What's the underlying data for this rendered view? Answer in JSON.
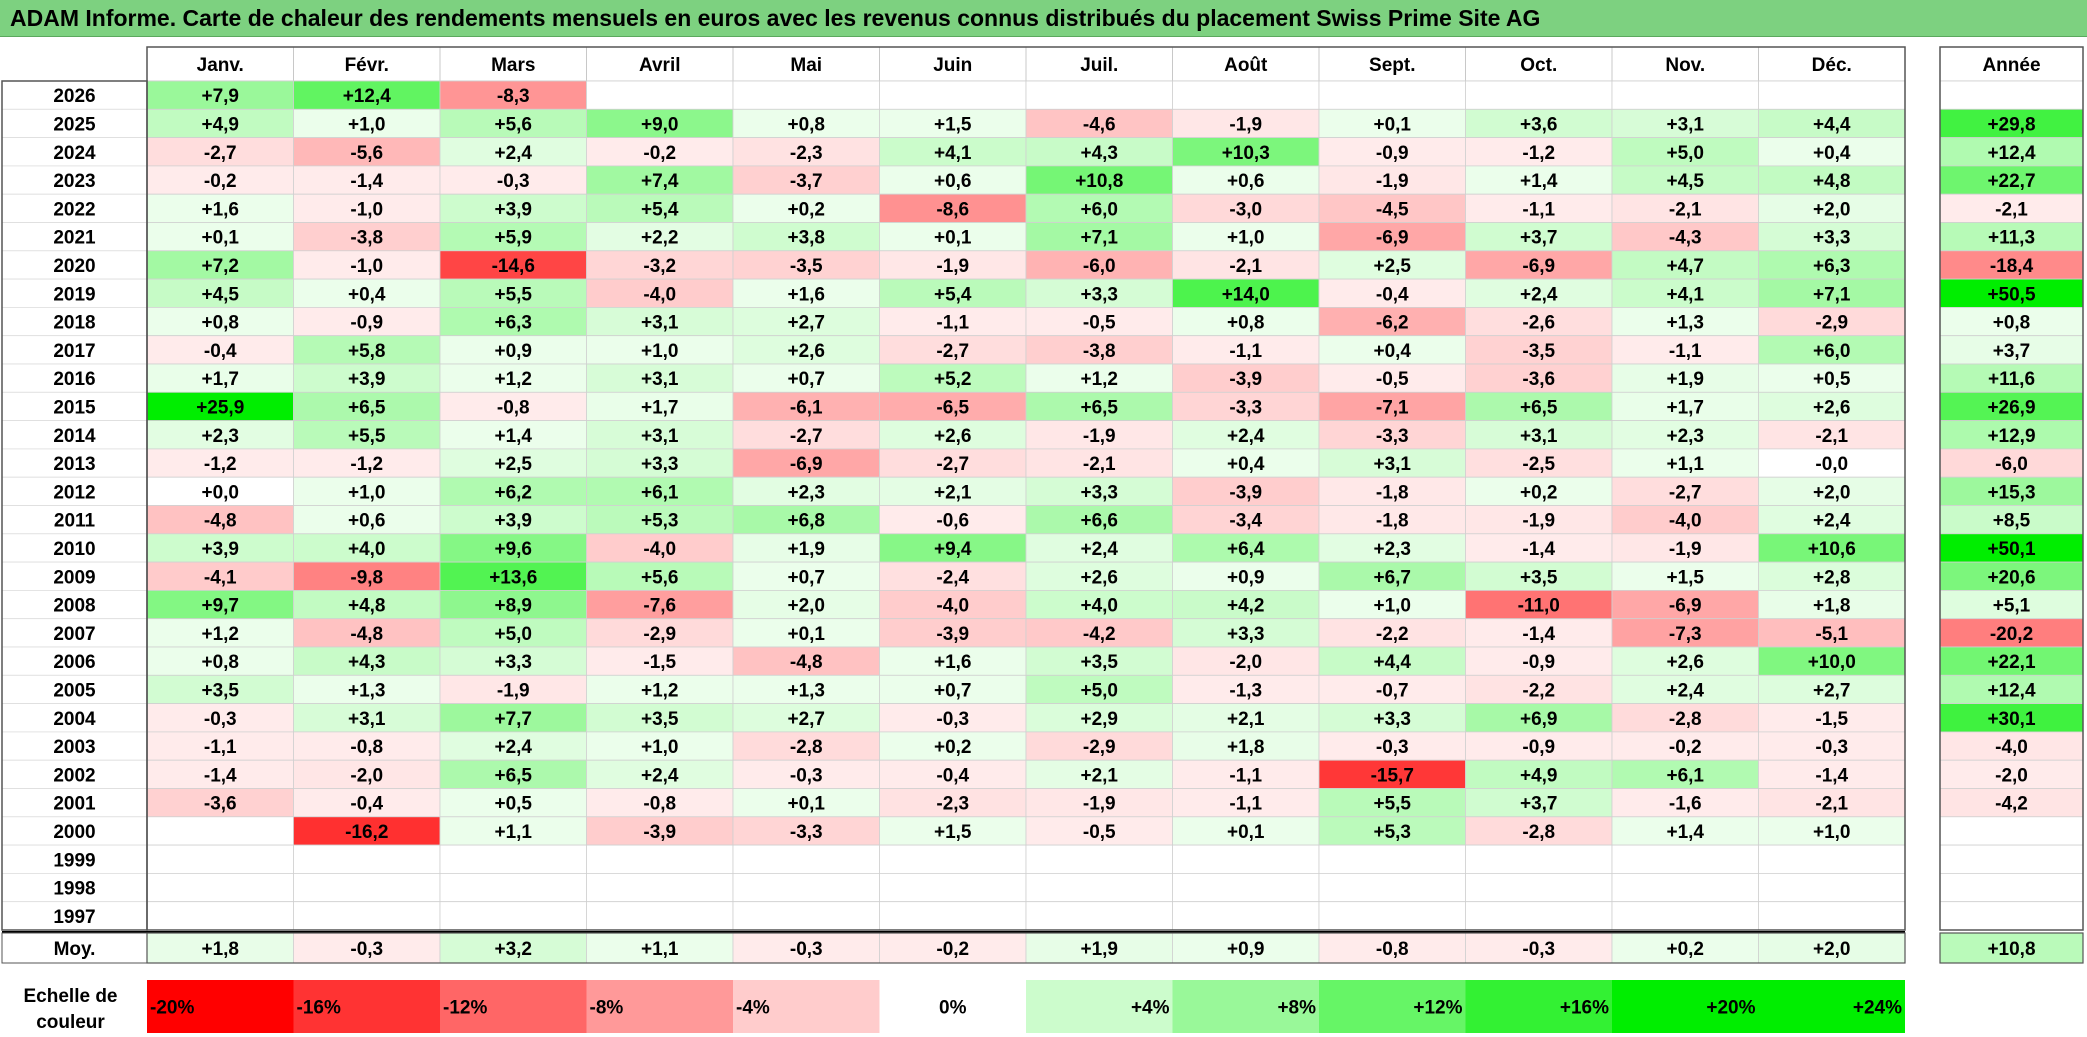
{
  "title": "ADAM Informe. Carte de chaleur des rendements mensuels en euros avec les revenus connus distribués du placement Swiss Prime Site AG",
  "chart_data": {
    "type": "heatmap",
    "months": [
      "Janv.",
      "Févr.",
      "Mars",
      "Avril",
      "Mai",
      "Juin",
      "Juil.",
      "Août",
      "Sept.",
      "Oct.",
      "Nov.",
      "Déc."
    ],
    "year_header": "Année",
    "rows": [
      {
        "year": "2026",
        "values": [
          "+7,9",
          "+12,4",
          "-8,3",
          "",
          "",
          "",
          "",
          "",
          "",
          "",
          "",
          ""
        ],
        "annual": ""
      },
      {
        "year": "2025",
        "values": [
          "+4,9",
          "+1,0",
          "+5,6",
          "+9,0",
          "+0,8",
          "+1,5",
          "-4,6",
          "-1,9",
          "+0,1",
          "+3,6",
          "+3,1",
          "+4,4"
        ],
        "annual": "+29,8"
      },
      {
        "year": "2024",
        "values": [
          "-2,7",
          "-5,6",
          "+2,4",
          "-0,2",
          "-2,3",
          "+4,1",
          "+4,3",
          "+10,3",
          "-0,9",
          "-1,2",
          "+5,0",
          "+0,4"
        ],
        "annual": "+12,4"
      },
      {
        "year": "2023",
        "values": [
          "-0,2",
          "-1,4",
          "-0,3",
          "+7,4",
          "-3,7",
          "+0,6",
          "+10,8",
          "+0,6",
          "-1,9",
          "+1,4",
          "+4,5",
          "+4,8"
        ],
        "annual": "+22,7"
      },
      {
        "year": "2022",
        "values": [
          "+1,6",
          "-1,0",
          "+3,9",
          "+5,4",
          "+0,2",
          "-8,6",
          "+6,0",
          "-3,0",
          "-4,5",
          "-1,1",
          "-2,1",
          "+2,0"
        ],
        "annual": "-2,1"
      },
      {
        "year": "2021",
        "values": [
          "+0,1",
          "-3,8",
          "+5,9",
          "+2,2",
          "+3,8",
          "+0,1",
          "+7,1",
          "+1,0",
          "-6,9",
          "+3,7",
          "-4,3",
          "+3,3"
        ],
        "annual": "+11,3"
      },
      {
        "year": "2020",
        "values": [
          "+7,2",
          "-1,0",
          "-14,6",
          "-3,2",
          "-3,5",
          "-1,9",
          "-6,0",
          "-2,1",
          "+2,5",
          "-6,9",
          "+4,7",
          "+6,3"
        ],
        "annual": "-18,4"
      },
      {
        "year": "2019",
        "values": [
          "+4,5",
          "+0,4",
          "+5,5",
          "-4,0",
          "+1,6",
          "+5,4",
          "+3,3",
          "+14,0",
          "-0,4",
          "+2,4",
          "+4,1",
          "+7,1"
        ],
        "annual": "+50,5"
      },
      {
        "year": "2018",
        "values": [
          "+0,8",
          "-0,9",
          "+6,3",
          "+3,1",
          "+2,7",
          "-1,1",
          "-0,5",
          "+0,8",
          "-6,2",
          "-2,6",
          "+1,3",
          "-2,9"
        ],
        "annual": "+0,8"
      },
      {
        "year": "2017",
        "values": [
          "-0,4",
          "+5,8",
          "+0,9",
          "+1,0",
          "+2,6",
          "-2,7",
          "-3,8",
          "-1,1",
          "+0,4",
          "-3,5",
          "-1,1",
          "+6,0"
        ],
        "annual": "+3,7"
      },
      {
        "year": "2016",
        "values": [
          "+1,7",
          "+3,9",
          "+1,2",
          "+3,1",
          "+0,7",
          "+5,2",
          "+1,2",
          "-3,9",
          "-0,5",
          "-3,6",
          "+1,9",
          "+0,5"
        ],
        "annual": "+11,6"
      },
      {
        "year": "2015",
        "values": [
          "+25,9",
          "+6,5",
          "-0,8",
          "+1,7",
          "-6,1",
          "-6,5",
          "+6,5",
          "-3,3",
          "-7,1",
          "+6,5",
          "+1,7",
          "+2,6"
        ],
        "annual": "+26,9"
      },
      {
        "year": "2014",
        "values": [
          "+2,3",
          "+5,5",
          "+1,4",
          "+3,1",
          "-2,7",
          "+2,6",
          "-1,9",
          "+2,4",
          "-3,3",
          "+3,1",
          "+2,3",
          "-2,1"
        ],
        "annual": "+12,9"
      },
      {
        "year": "2013",
        "values": [
          "-1,2",
          "-1,2",
          "+2,5",
          "+3,3",
          "-6,9",
          "-2,7",
          "-2,1",
          "+0,4",
          "+3,1",
          "-2,5",
          "+1,1",
          "-0,0"
        ],
        "annual": "-6,0"
      },
      {
        "year": "2012",
        "values": [
          "+0,0",
          "+1,0",
          "+6,2",
          "+6,1",
          "+2,3",
          "+2,1",
          "+3,3",
          "-3,9",
          "-1,8",
          "+0,2",
          "-2,7",
          "+2,0"
        ],
        "annual": "+15,3"
      },
      {
        "year": "2011",
        "values": [
          "-4,8",
          "+0,6",
          "+3,9",
          "+5,3",
          "+6,8",
          "-0,6",
          "+6,6",
          "-3,4",
          "-1,8",
          "-1,9",
          "-4,0",
          "+2,4"
        ],
        "annual": "+8,5"
      },
      {
        "year": "2010",
        "values": [
          "+3,9",
          "+4,0",
          "+9,6",
          "-4,0",
          "+1,9",
          "+9,4",
          "+2,4",
          "+6,4",
          "+2,3",
          "-1,4",
          "-1,9",
          "+10,6"
        ],
        "annual": "+50,1"
      },
      {
        "year": "2009",
        "values": [
          "-4,1",
          "-9,8",
          "+13,6",
          "+5,6",
          "+0,7",
          "-2,4",
          "+2,6",
          "+0,9",
          "+6,7",
          "+3,5",
          "+1,5",
          "+2,8"
        ],
        "annual": "+20,6"
      },
      {
        "year": "2008",
        "values": [
          "+9,7",
          "+4,8",
          "+8,9",
          "-7,6",
          "+2,0",
          "-4,0",
          "+4,0",
          "+4,2",
          "+1,0",
          "-11,0",
          "-6,9",
          "+1,8"
        ],
        "annual": "+5,1"
      },
      {
        "year": "2007",
        "values": [
          "+1,2",
          "-4,8",
          "+5,0",
          "-2,9",
          "+0,1",
          "-3,9",
          "-4,2",
          "+3,3",
          "-2,2",
          "-1,4",
          "-7,3",
          "-5,1"
        ],
        "annual": "-20,2"
      },
      {
        "year": "2006",
        "values": [
          "+0,8",
          "+4,3",
          "+3,3",
          "-1,5",
          "-4,8",
          "+1,6",
          "+3,5",
          "-2,0",
          "+4,4",
          "-0,9",
          "+2,6",
          "+10,0"
        ],
        "annual": "+22,1"
      },
      {
        "year": "2005",
        "values": [
          "+3,5",
          "+1,3",
          "-1,9",
          "+1,2",
          "+1,3",
          "+0,7",
          "+5,0",
          "-1,3",
          "-0,7",
          "-2,2",
          "+2,4",
          "+2,7"
        ],
        "annual": "+12,4"
      },
      {
        "year": "2004",
        "values": [
          "-0,3",
          "+3,1",
          "+7,7",
          "+3,5",
          "+2,7",
          "-0,3",
          "+2,9",
          "+2,1",
          "+3,3",
          "+6,9",
          "-2,8",
          "-1,5"
        ],
        "annual": "+30,1"
      },
      {
        "year": "2003",
        "values": [
          "-1,1",
          "-0,8",
          "+2,4",
          "+1,0",
          "-2,8",
          "+0,2",
          "-2,9",
          "+1,8",
          "-0,3",
          "-0,9",
          "-0,2",
          "-0,3"
        ],
        "annual": "-4,0"
      },
      {
        "year": "2002",
        "values": [
          "-1,4",
          "-2,0",
          "+6,5",
          "+2,4",
          "-0,3",
          "-0,4",
          "+2,1",
          "-1,1",
          "-15,7",
          "+4,9",
          "+6,1",
          "-1,4"
        ],
        "annual": "-2,0"
      },
      {
        "year": "2001",
        "values": [
          "-3,6",
          "-0,4",
          "+0,5",
          "-0,8",
          "+0,1",
          "-2,3",
          "-1,9",
          "-1,1",
          "+5,5",
          "+3,7",
          "-1,6",
          "-2,1"
        ],
        "annual": "-4,2"
      },
      {
        "year": "2000",
        "values": [
          "",
          "-16,2",
          "+1,1",
          "-3,9",
          "-3,3",
          "+1,5",
          "-0,5",
          "+0,1",
          "+5,3",
          "-2,8",
          "+1,4",
          "+1,0"
        ],
        "annual": ""
      },
      {
        "year": "1999",
        "values": [
          "",
          "",
          "",
          "",
          "",
          "",
          "",
          "",
          "",
          "",
          "",
          ""
        ],
        "annual": ""
      },
      {
        "year": "1998",
        "values": [
          "",
          "",
          "",
          "",
          "",
          "",
          "",
          "",
          "",
          "",
          "",
          ""
        ],
        "annual": ""
      },
      {
        "year": "1997",
        "values": [
          "",
          "",
          "",
          "",
          "",
          "",
          "",
          "",
          "",
          "",
          "",
          ""
        ],
        "annual": ""
      }
    ],
    "average": {
      "label": "Moy.",
      "values": [
        "+1,8",
        "-0,3",
        "+3,2",
        "+1,1",
        "-0,3",
        "-0,2",
        "+1,9",
        "+0,9",
        "-0,8",
        "-0,3",
        "+0,2",
        "+2,0"
      ],
      "annual": "+10,8"
    },
    "color_scale": {
      "label_line1": "Echelle de",
      "label_line2": "couleur",
      "stops": [
        {
          "label": "-20%",
          "value": -20
        },
        {
          "label": "-16%",
          "value": -16
        },
        {
          "label": "-12%",
          "value": -12
        },
        {
          "label": "-8%",
          "value": -8
        },
        {
          "label": "-4%",
          "value": -4
        },
        {
          "label": "0%",
          "value": 0
        },
        {
          "label": "+4%",
          "value": 4
        },
        {
          "label": "+8%",
          "value": 8
        },
        {
          "label": "+12%",
          "value": 12
        },
        {
          "label": "+16%",
          "value": 16
        },
        {
          "label": "+20%",
          "value": 20
        },
        {
          "label": "+24%",
          "value": 24
        }
      ]
    },
    "colors": {
      "max_negative": "#ff0000",
      "neutral": "#ffffff",
      "max_positive": "#00ee00",
      "title_bar": "#7dd180"
    }
  }
}
